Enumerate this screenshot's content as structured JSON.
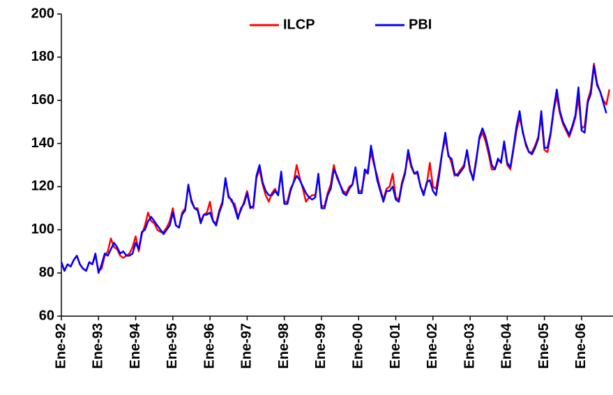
{
  "chart_data": {
    "type": "line",
    "categories": [
      "Ene-92",
      null,
      null,
      null,
      null,
      null,
      null,
      null,
      null,
      null,
      null,
      null,
      "Ene-93",
      null,
      null,
      null,
      null,
      null,
      null,
      null,
      null,
      null,
      null,
      null,
      "Ene-94",
      null,
      null,
      null,
      null,
      null,
      null,
      null,
      null,
      null,
      null,
      null,
      "Ene-95",
      null,
      null,
      null,
      null,
      null,
      null,
      null,
      null,
      null,
      null,
      null,
      "Ene-96",
      null,
      null,
      null,
      null,
      null,
      null,
      null,
      null,
      null,
      null,
      null,
      "Ene-97",
      null,
      null,
      null,
      null,
      null,
      null,
      null,
      null,
      null,
      null,
      null,
      "Ene-98",
      null,
      null,
      null,
      null,
      null,
      null,
      null,
      null,
      null,
      null,
      null,
      "Ene-99",
      null,
      null,
      null,
      null,
      null,
      null,
      null,
      null,
      null,
      null,
      null,
      "Ene-00",
      null,
      null,
      null,
      null,
      null,
      null,
      null,
      null,
      null,
      null,
      null,
      "Ene-01",
      null,
      null,
      null,
      null,
      null,
      null,
      null,
      null,
      null,
      null,
      null,
      "Ene-02",
      null,
      null,
      null,
      null,
      null,
      null,
      null,
      null,
      null,
      null,
      null,
      "Ene-03",
      null,
      null,
      null,
      null,
      null,
      null,
      null,
      null,
      null,
      null,
      null,
      "Ene-04",
      null,
      null,
      null,
      null,
      null,
      null,
      null,
      null,
      null,
      null,
      null,
      "Ene-05",
      null,
      null,
      null,
      null,
      null,
      null,
      null,
      null,
      null,
      null,
      null,
      "Ene-06",
      null,
      null,
      null,
      null,
      null,
      null,
      null,
      null,
      null
    ],
    "series": [
      {
        "name": "ILCP",
        "color": "#ff0000",
        "values": [
          85,
          81,
          84,
          83,
          86,
          88,
          84,
          82,
          81,
          85,
          84,
          88,
          81,
          82,
          88,
          90,
          96,
          92,
          91,
          88,
          87,
          88,
          89,
          92,
          97,
          90,
          98,
          102,
          108,
          104,
          103,
          100,
          99,
          99,
          101,
          104,
          110,
          102,
          101,
          108,
          110,
          120,
          114,
          110,
          110,
          104,
          107,
          108,
          113,
          104,
          103,
          109,
          113,
          123,
          116,
          113,
          112,
          106,
          109,
          113,
          118,
          111,
          110,
          124,
          128,
          121,
          116,
          113,
          117,
          119,
          116,
          126,
          113,
          113,
          119,
          122,
          130,
          124,
          119,
          113,
          115,
          116,
          116,
          125,
          111,
          111,
          117,
          121,
          130,
          124,
          121,
          118,
          117,
          120,
          121,
          127,
          118,
          118,
          126,
          128,
          136,
          130,
          125,
          119,
          114,
          119,
          120,
          126,
          115,
          114,
          122,
          127,
          135,
          129,
          126,
          126,
          120,
          117,
          121,
          131,
          120,
          119,
          127,
          136,
          142,
          135,
          131,
          125,
          126,
          128,
          130,
          136,
          127,
          124,
          133,
          142,
          145,
          141,
          135,
          128,
          128,
          132,
          132,
          140,
          130,
          128,
          137,
          146,
          152,
          146,
          139,
          136,
          136,
          139,
          143,
          152,
          137,
          136,
          144,
          155,
          162,
          154,
          149,
          146,
          143,
          147,
          152,
          161,
          147,
          148,
          160,
          165,
          177,
          168,
          164,
          160,
          158,
          165
        ]
      },
      {
        "name": "PBI",
        "color": "#0000ff",
        "values": [
          85,
          81,
          84,
          83,
          86,
          88,
          84,
          82,
          81,
          85,
          84,
          89,
          80,
          84,
          89,
          88,
          91,
          94,
          92,
          89,
          90,
          88,
          88,
          89,
          94,
          91,
          99,
          100,
          104,
          106,
          104,
          102,
          100,
          98,
          100,
          102,
          108,
          102,
          101,
          107,
          109,
          121,
          113,
          110,
          109,
          103,
          107,
          107,
          108,
          104,
          102,
          108,
          112,
          124,
          115,
          114,
          110,
          105,
          110,
          112,
          117,
          110,
          111,
          125,
          130,
          122,
          118,
          116,
          116,
          118,
          116,
          127,
          112,
          112,
          118,
          122,
          125,
          123,
          120,
          117,
          115,
          114,
          115,
          126,
          110,
          110,
          116,
          119,
          128,
          125,
          121,
          117,
          116,
          119,
          121,
          129,
          117,
          117,
          128,
          126,
          139,
          131,
          123,
          118,
          113,
          118,
          118,
          120,
          114,
          113,
          121,
          126,
          137,
          130,
          126,
          127,
          120,
          116,
          122,
          123,
          118,
          116,
          125,
          136,
          145,
          134,
          133,
          126,
          125,
          127,
          129,
          137,
          128,
          123,
          132,
          143,
          147,
          143,
          137,
          130,
          128,
          133,
          131,
          141,
          131,
          129,
          138,
          148,
          155,
          145,
          140,
          136,
          135,
          138,
          142,
          155,
          138,
          138,
          145,
          156,
          165,
          155,
          150,
          147,
          144,
          148,
          153,
          166,
          146,
          145,
          159,
          163,
          176,
          167,
          164,
          159,
          154,
          null
        ]
      }
    ],
    "ylim": [
      60,
      200
    ],
    "yticks": [
      60,
      80,
      100,
      120,
      140,
      160,
      180,
      200
    ],
    "grid": false,
    "legend": "top"
  }
}
